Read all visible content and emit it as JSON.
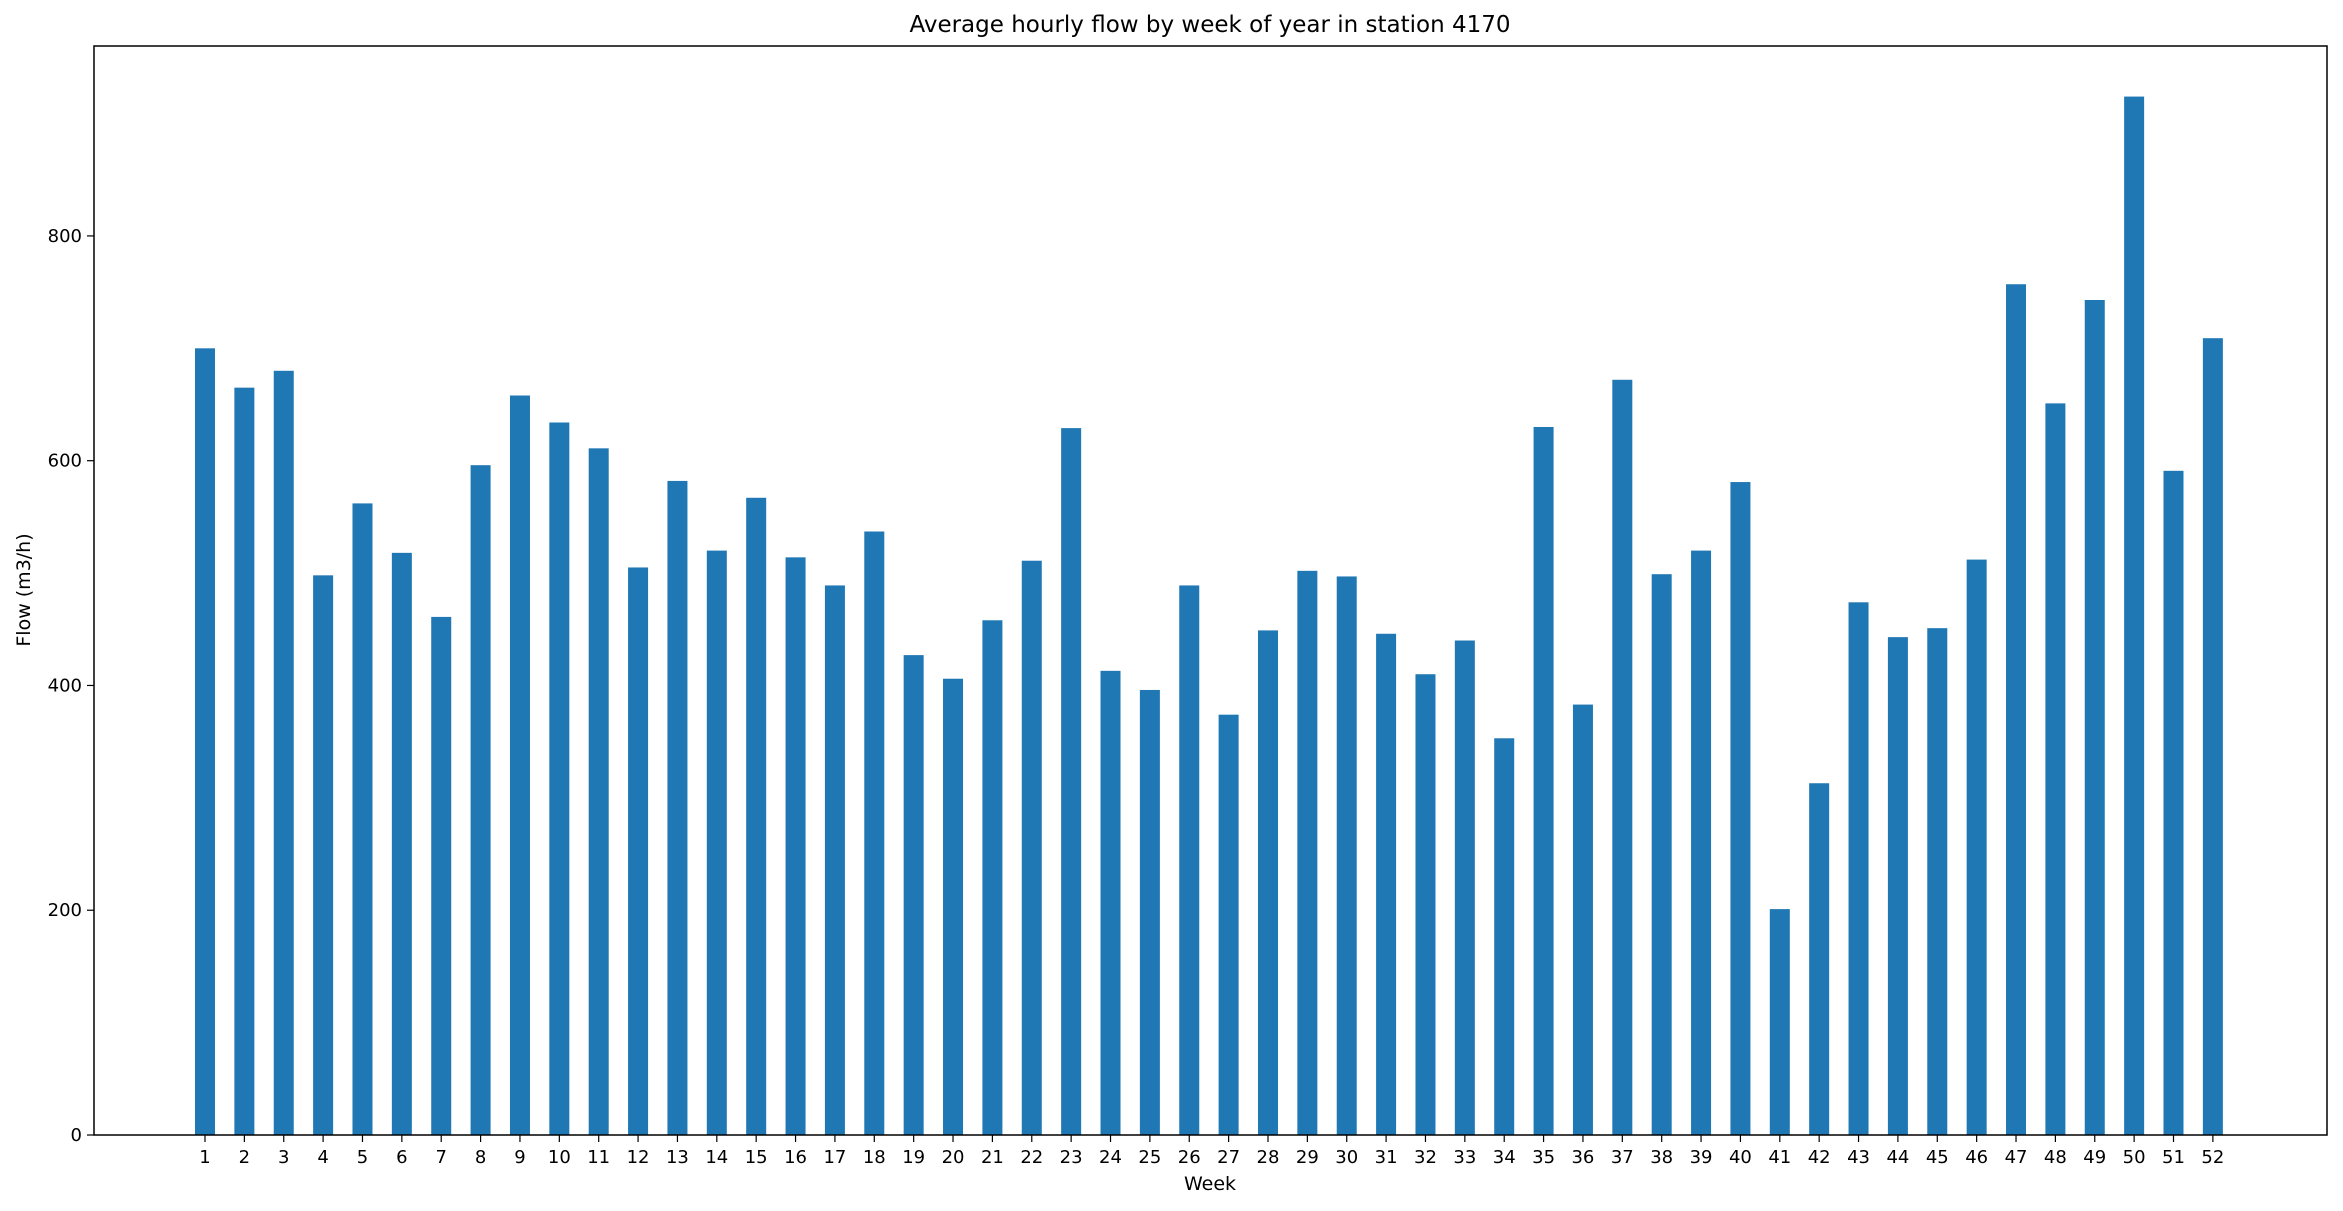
{
  "chart_data": {
    "type": "bar",
    "title": "Average hourly flow by week of year in station 4170",
    "xlabel": "Week",
    "ylabel": "Flow (m3/h)",
    "categories": [
      "1",
      "2",
      "3",
      "4",
      "5",
      "6",
      "7",
      "8",
      "9",
      "10",
      "11",
      "12",
      "13",
      "14",
      "15",
      "16",
      "17",
      "18",
      "19",
      "20",
      "21",
      "22",
      "23",
      "24",
      "25",
      "26",
      "27",
      "28",
      "29",
      "30",
      "31",
      "32",
      "33",
      "34",
      "35",
      "36",
      "37",
      "38",
      "39",
      "40",
      "41",
      "42",
      "43",
      "44",
      "45",
      "46",
      "47",
      "48",
      "49",
      "50",
      "51",
      "52"
    ],
    "values": [
      700,
      665,
      680,
      498,
      562,
      518,
      461,
      596,
      658,
      634,
      611,
      505,
      582,
      520,
      567,
      514,
      489,
      537,
      427,
      406,
      458,
      511,
      629,
      413,
      396,
      489,
      374,
      449,
      502,
      497,
      446,
      410,
      440,
      353,
      630,
      383,
      672,
      499,
      520,
      581,
      201,
      313,
      474,
      443,
      451,
      512,
      757,
      651,
      743,
      924,
      591,
      709
    ],
    "ylim": [
      0,
      969
    ],
    "yticks": [
      "0",
      "200",
      "400",
      "600",
      "800"
    ],
    "bar_color": "#1f77b4",
    "grid": false,
    "legend": "none"
  }
}
